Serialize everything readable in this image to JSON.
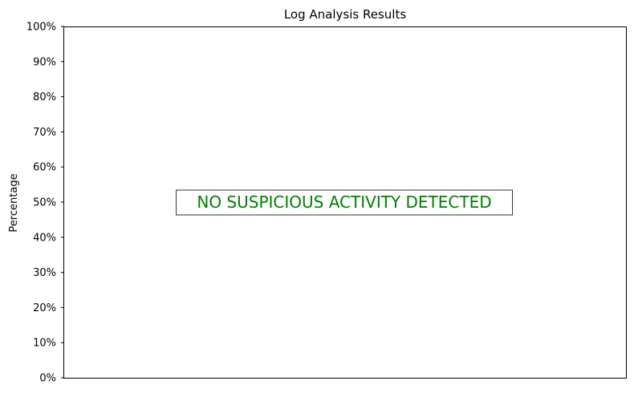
{
  "chart_data": {
    "type": "bar",
    "title": "Log Analysis Results",
    "ylabel": "Percentage",
    "ylim": [
      0,
      100
    ],
    "yticks": [
      0,
      10,
      20,
      30,
      40,
      50,
      60,
      70,
      80,
      90,
      100
    ],
    "ytick_labels": [
      "0%",
      "10%",
      "20%",
      "30%",
      "40%",
      "50%",
      "60%",
      "70%",
      "80%",
      "90%",
      "100%"
    ],
    "categories": [],
    "values": [],
    "grid": false,
    "annotation": {
      "text": "NO SUSPICIOUS ACTIVITY DETECTED",
      "y": 50,
      "color": "#008000"
    }
  }
}
